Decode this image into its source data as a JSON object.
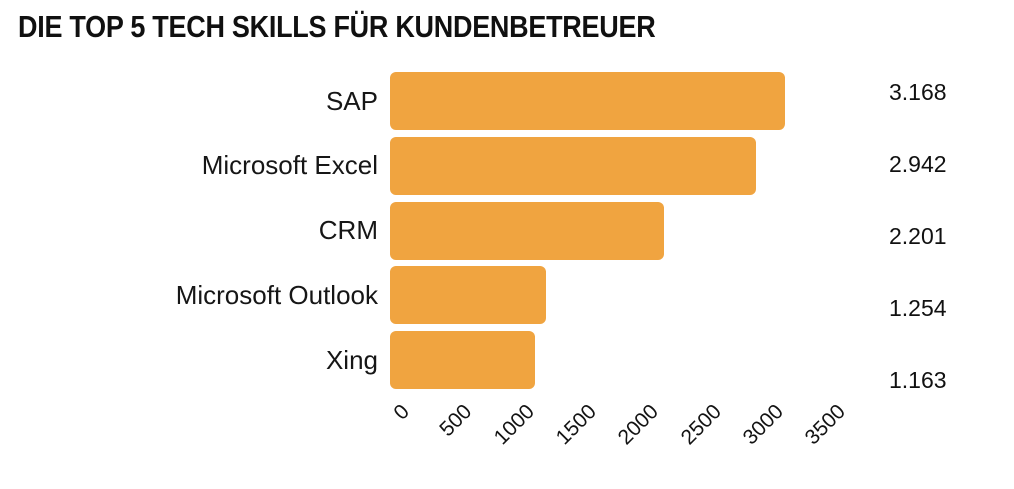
{
  "title": "DIE TOP 5 TECH SKILLS FÜR KUNDENBETREUER",
  "chart_data": {
    "type": "bar",
    "orientation": "horizontal",
    "title": "DIE TOP 5 TECH SKILLS FÜR KUNDENBETREUER",
    "categories": [
      "SAP",
      "Microsoft Excel",
      "CRM",
      "Microsoft Outlook",
      "Xing"
    ],
    "values": [
      3168,
      2942,
      2201,
      1254,
      1163
    ],
    "value_labels": [
      "3.168",
      "2.942",
      "2.201",
      "1.254",
      "1.163"
    ],
    "xticks": [
      0,
      500,
      1000,
      1500,
      2000,
      2500,
      3000,
      3500
    ],
    "xtick_labels": [
      "0",
      "500",
      "1000",
      "1500",
      "2000",
      "2500",
      "3000",
      "3500"
    ],
    "xlim": [
      0,
      3500
    ],
    "xlabel": "",
    "ylabel": "",
    "grid": false,
    "legend": false,
    "bar_color": "#F0A440",
    "text_color": "#111111",
    "background_color": "#FFFFFF"
  }
}
